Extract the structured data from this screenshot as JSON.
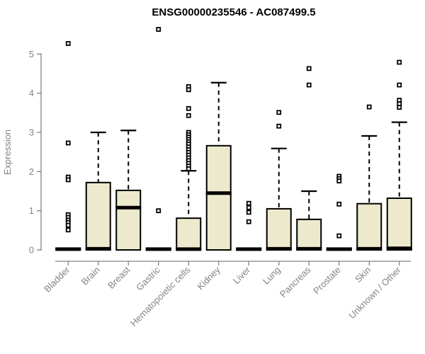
{
  "chart_data": {
    "type": "boxplot",
    "title": "ENSG00000235546 - AC087499.5",
    "ylabel": "Expression",
    "xlabel": "",
    "ylim": [
      0,
      5
    ],
    "y_ticks": [
      "0",
      "1",
      "2",
      "3",
      "4",
      "5"
    ],
    "grid": false,
    "legend": "none",
    "colors": {
      "box_fill": "#EDE9CC",
      "box_border": "#000000",
      "median": "#000000",
      "whisker": "#000000",
      "outlier": "#000000",
      "axis": "#838383",
      "tick_label": "#838383",
      "title": "#000000"
    },
    "categories": [
      "Bladder",
      "Brain",
      "Breast",
      "Gastric",
      "Hematopoietic cells",
      "Kidney",
      "Liver",
      "Lung",
      "Pancreas",
      "Prostate",
      "Skin",
      "Unknown / Other"
    ],
    "boxes": [
      {
        "category": "Bladder",
        "whisker_low": 0,
        "q1": 0,
        "median": 0.02,
        "q3": 0.04,
        "whisker_high": 0.04,
        "outliers": [
          5.27,
          2.73,
          1.86,
          1.79,
          0.9,
          0.83,
          0.76,
          0.7,
          0.63,
          0.51
        ]
      },
      {
        "category": "Brain",
        "whisker_low": 0,
        "q1": 0,
        "median": 0.03,
        "q3": 1.72,
        "whisker_high": 3.0,
        "outliers": []
      },
      {
        "category": "Breast",
        "whisker_low": 0,
        "q1": 0,
        "median": 1.08,
        "q3": 1.52,
        "whisker_high": 3.05,
        "outliers": []
      },
      {
        "category": "Gastric",
        "whisker_low": 0,
        "q1": 0,
        "median": 0.02,
        "q3": 0.04,
        "whisker_high": 0.04,
        "outliers": [
          5.63,
          1.0
        ]
      },
      {
        "category": "Hematopoietic cells",
        "whisker_low": 0,
        "q1": 0,
        "median": 0.02,
        "q3": 0.81,
        "whisker_high": 2.02,
        "outliers": [
          4.17,
          4.09,
          3.61,
          3.43,
          3.0,
          2.94,
          2.88,
          2.82,
          2.76,
          2.7,
          2.63,
          2.56,
          2.49,
          2.42,
          2.35,
          2.28,
          2.21,
          2.14,
          2.07
        ]
      },
      {
        "category": "Kidney",
        "whisker_low": 0,
        "q1": 0,
        "median": 1.45,
        "q3": 2.66,
        "whisker_high": 4.27,
        "outliers": []
      },
      {
        "category": "Liver",
        "whisker_low": 0,
        "q1": 0,
        "median": 0.02,
        "q3": 0.04,
        "whisker_high": 0.04,
        "outliers": [
          1.19,
          1.08,
          0.96,
          0.72
        ]
      },
      {
        "category": "Lung",
        "whisker_low": 0,
        "q1": 0,
        "median": 0.03,
        "q3": 1.05,
        "whisker_high": 2.59,
        "outliers": [
          3.51,
          3.16
        ]
      },
      {
        "category": "Pancreas",
        "whisker_low": 0,
        "q1": 0,
        "median": 0.03,
        "q3": 0.78,
        "whisker_high": 1.5,
        "outliers": [
          4.63,
          4.21
        ]
      },
      {
        "category": "Prostate",
        "whisker_low": 0,
        "q1": 0,
        "median": 0.02,
        "q3": 0.04,
        "whisker_high": 0.04,
        "outliers": [
          1.88,
          1.82,
          1.76,
          1.17,
          0.36
        ]
      },
      {
        "category": "Skin",
        "whisker_low": 0,
        "q1": 0,
        "median": 0.03,
        "q3": 1.18,
        "whisker_high": 2.91,
        "outliers": [
          3.65
        ]
      },
      {
        "category": "Unknown / Other",
        "whisker_low": 0,
        "q1": 0,
        "median": 0.04,
        "q3": 1.32,
        "whisker_high": 3.26,
        "outliers": [
          4.79,
          4.21,
          3.82,
          3.73,
          3.64
        ]
      }
    ]
  }
}
